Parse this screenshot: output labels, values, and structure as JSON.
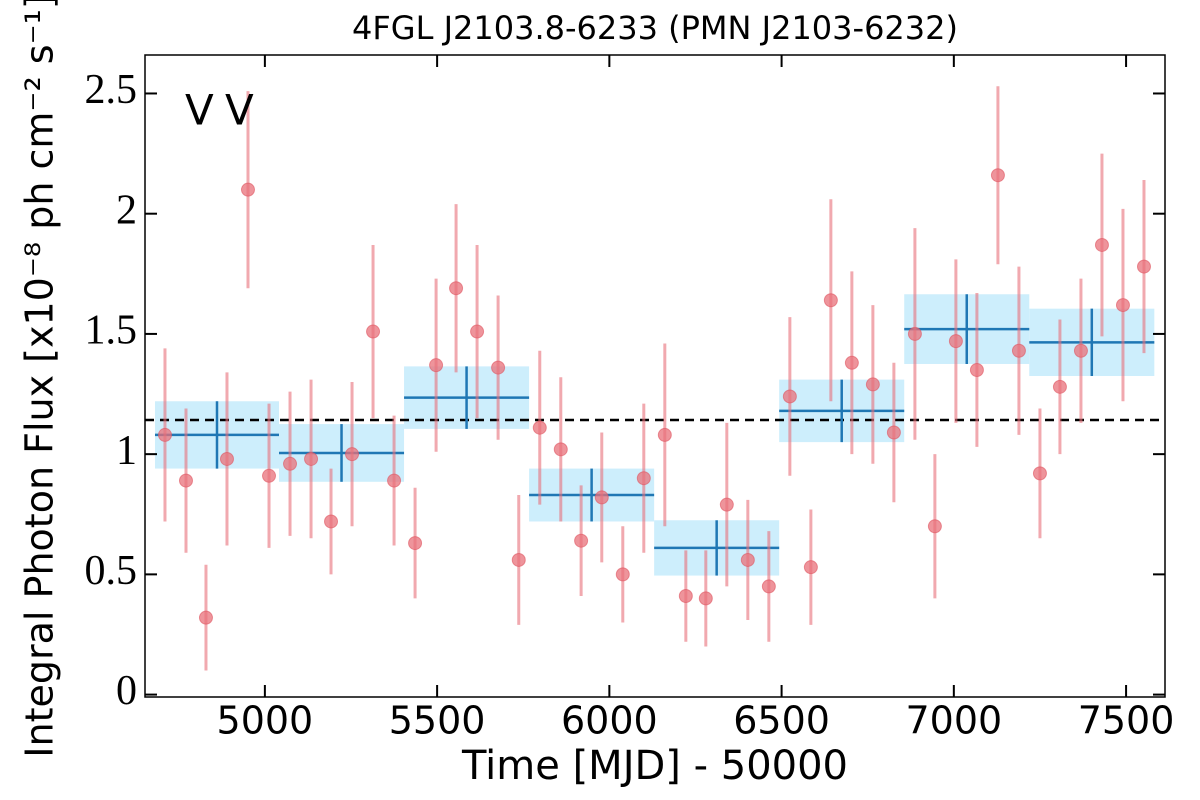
{
  "chart_data": {
    "type": "lightcurve",
    "title": "4FGL J2103.8-6233 (PMN J2103-6232)",
    "xlabel": "Time [MJD] - 50000",
    "ylabel": "Integral Photon Flux [x10⁻⁸ ph cm⁻² s⁻¹]",
    "xlim": [
      4652,
      7613
    ],
    "ylim": [
      -0.01,
      2.66
    ],
    "xticks": [
      5000,
      5500,
      6000,
      6500,
      7000,
      7500
    ],
    "yticks": [
      0,
      0.5,
      1,
      1.5,
      2,
      2.5
    ],
    "points": {
      "color": "#e8707a",
      "x": [
        4710,
        4771,
        4829,
        4890,
        4951,
        5012,
        5073,
        5134,
        5192,
        5253,
        5314,
        5375,
        5436,
        5497,
        5555,
        5616,
        5677,
        5737,
        5798,
        5859,
        5918,
        5978,
        6039,
        6100,
        6161,
        6222,
        6280,
        6341,
        6402,
        6463,
        6524,
        6585,
        6643,
        6704,
        6765,
        6826,
        6887,
        6945,
        7006,
        7067,
        7128,
        7189,
        7250,
        7308,
        7369,
        7430,
        7491,
        7552
      ],
      "values": [
        1.08,
        0.89,
        0.32,
        0.98,
        2.1,
        0.91,
        0.96,
        0.98,
        0.72,
        1.0,
        1.51,
        0.89,
        0.63,
        1.37,
        1.69,
        1.51,
        1.36,
        0.56,
        1.11,
        1.02,
        0.64,
        0.82,
        0.5,
        0.9,
        1.08,
        0.41,
        0.4,
        0.79,
        0.56,
        0.45,
        1.24,
        0.53,
        1.64,
        1.38,
        1.29,
        1.09,
        1.5,
        0.7,
        1.47,
        1.35,
        2.16,
        1.43,
        0.92,
        1.28,
        1.43,
        1.87,
        1.62,
        1.78
      ],
      "errors": [
        0.36,
        0.3,
        0.22,
        0.36,
        0.41,
        0.3,
        0.3,
        0.33,
        0.22,
        0.3,
        0.36,
        0.27,
        0.23,
        0.36,
        0.35,
        0.36,
        0.3,
        0.27,
        0.32,
        0.3,
        0.23,
        0.27,
        0.2,
        0.31,
        0.38,
        0.19,
        0.2,
        0.34,
        0.25,
        0.23,
        0.33,
        0.24,
        0.42,
        0.38,
        0.33,
        0.29,
        0.44,
        0.3,
        0.34,
        0.32,
        0.37,
        0.35,
        0.27,
        0.28,
        0.3,
        0.38,
        0.4,
        0.36
      ]
    },
    "blocks": {
      "color": "#1f77b4",
      "fill": "#cdeefc",
      "edges": [
        4681,
        5041,
        5404,
        5767,
        6130,
        6493,
        6856,
        7219,
        7582
      ],
      "values": [
        1.08,
        1.005,
        1.235,
        0.83,
        0.61,
        1.18,
        1.52,
        1.465
      ],
      "errors": [
        0.14,
        0.12,
        0.13,
        0.11,
        0.115,
        0.13,
        0.145,
        0.14
      ]
    },
    "reference_line": 1.142,
    "annotations": [
      {
        "text": "V",
        "color": "#1f77b4"
      },
      {
        "text": "V",
        "color": "#d62728"
      }
    ]
  }
}
